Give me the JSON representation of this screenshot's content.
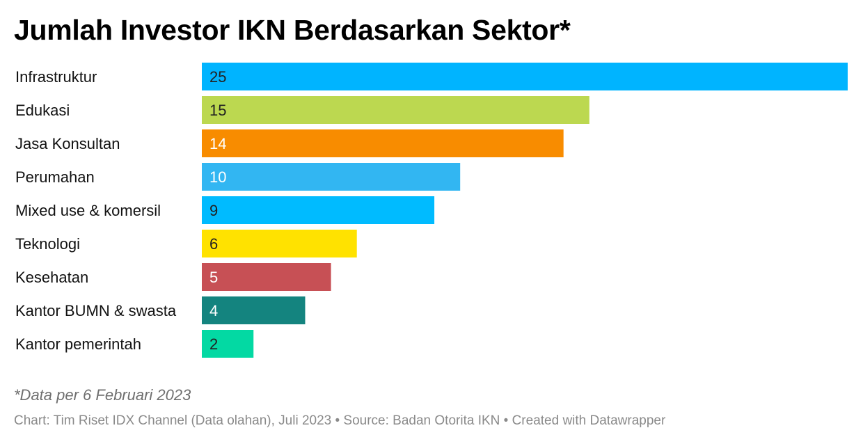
{
  "chart_data": {
    "type": "bar",
    "orientation": "horizontal",
    "title": "Jumlah Investor IKN Berdasarkan Sektor*",
    "categories": [
      "Infrastruktur",
      "Edukasi",
      "Jasa Konsultan",
      "Perumahan",
      "Mixed use & komersil",
      "Teknologi",
      "Kesehatan",
      "Kantor BUMN & swasta",
      "Kantor pemerintah"
    ],
    "values": [
      25,
      15,
      14,
      10,
      9,
      6,
      5,
      4,
      2
    ],
    "colors": [
      "#00b4ff",
      "#bcd850",
      "#f88c00",
      "#32b6f2",
      "#00bbff",
      "#ffe200",
      "#c75055",
      "#14847f",
      "#03d9a3"
    ],
    "label_colors": [
      "#222222",
      "#222222",
      "#ffffff",
      "#ffffff",
      "#222222",
      "#222222",
      "#ffffff",
      "#ffffff",
      "#222222"
    ],
    "xlim": [
      0,
      25
    ],
    "grid": false,
    "legend": "none",
    "note": "*Data per 6 Februari 2023",
    "credits": "Chart: Tim Riset IDX Channel (Data olahan), Juli 2023 • Source: Badan Otorita IKN • Created with Datawrapper"
  }
}
